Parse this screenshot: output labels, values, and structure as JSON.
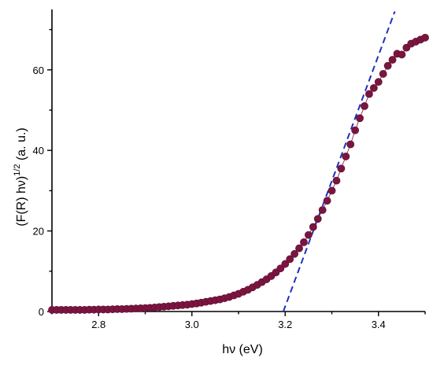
{
  "chart_data": {
    "type": "scatter",
    "xlabel": "hν (eV)",
    "ylabel_main": "(F(R) hν)",
    "ylabel_sup": "1/2",
    "ylabel_unit": " (a. u.)",
    "xlim": [
      2.7,
      3.5
    ],
    "ylim": [
      0,
      75
    ],
    "x_ticks": [
      2.8,
      3.0,
      3.2,
      3.4
    ],
    "x_tick_labels": [
      "2.8",
      "3.0",
      "3.2",
      "3.4"
    ],
    "y_ticks": [
      0,
      20,
      40,
      60
    ],
    "y_tick_labels": [
      "0",
      "20",
      "40",
      "60"
    ],
    "grid": false,
    "series": [
      {
        "marker_color": "#7a1540",
        "points": [
          [
            2.7,
            0.4
          ],
          [
            2.71,
            0.4
          ],
          [
            2.72,
            0.4
          ],
          [
            2.73,
            0.4
          ],
          [
            2.74,
            0.4
          ],
          [
            2.75,
            0.4
          ],
          [
            2.76,
            0.4
          ],
          [
            2.77,
            0.4
          ],
          [
            2.78,
            0.45
          ],
          [
            2.79,
            0.45
          ],
          [
            2.8,
            0.5
          ],
          [
            2.81,
            0.5
          ],
          [
            2.82,
            0.5
          ],
          [
            2.83,
            0.55
          ],
          [
            2.84,
            0.6
          ],
          [
            2.85,
            0.6
          ],
          [
            2.86,
            0.65
          ],
          [
            2.87,
            0.7
          ],
          [
            2.88,
            0.75
          ],
          [
            2.89,
            0.8
          ],
          [
            2.9,
            0.85
          ],
          [
            2.91,
            0.9
          ],
          [
            2.92,
            1.0
          ],
          [
            2.93,
            1.1
          ],
          [
            2.94,
            1.2
          ],
          [
            2.95,
            1.3
          ],
          [
            2.96,
            1.4
          ],
          [
            2.97,
            1.5
          ],
          [
            2.98,
            1.6
          ],
          [
            2.99,
            1.7
          ],
          [
            3.0,
            1.85
          ],
          [
            3.01,
            2.0
          ],
          [
            3.02,
            2.2
          ],
          [
            3.03,
            2.4
          ],
          [
            3.04,
            2.6
          ],
          [
            3.05,
            2.8
          ],
          [
            3.06,
            3.0
          ],
          [
            3.07,
            3.3
          ],
          [
            3.08,
            3.6
          ],
          [
            3.09,
            4.0
          ],
          [
            3.1,
            4.4
          ],
          [
            3.11,
            4.9
          ],
          [
            3.12,
            5.4
          ],
          [
            3.13,
            6.0
          ],
          [
            3.14,
            6.6
          ],
          [
            3.15,
            7.3
          ],
          [
            3.16,
            8.0
          ],
          [
            3.17,
            8.8
          ],
          [
            3.18,
            9.7
          ],
          [
            3.19,
            10.7
          ],
          [
            3.2,
            11.8
          ],
          [
            3.21,
            13.0
          ],
          [
            3.22,
            14.3
          ],
          [
            3.23,
            15.7
          ],
          [
            3.24,
            17.2
          ],
          [
            3.25,
            19.0
          ],
          [
            3.26,
            21.0
          ],
          [
            3.27,
            23.0
          ],
          [
            3.28,
            25.2
          ],
          [
            3.29,
            27.5
          ],
          [
            3.3,
            30.0
          ],
          [
            3.31,
            32.5
          ],
          [
            3.32,
            35.5
          ],
          [
            3.33,
            38.5
          ],
          [
            3.34,
            41.5
          ],
          [
            3.35,
            45.0
          ],
          [
            3.36,
            48.0
          ],
          [
            3.37,
            51.0
          ],
          [
            3.38,
            54.0
          ],
          [
            3.39,
            55.5
          ],
          [
            3.4,
            57.0
          ],
          [
            3.41,
            59.0
          ],
          [
            3.42,
            61.0
          ],
          [
            3.43,
            62.5
          ],
          [
            3.44,
            64.0
          ],
          [
            3.45,
            63.8
          ],
          [
            3.46,
            65.5
          ],
          [
            3.47,
            66.5
          ],
          [
            3.48,
            67.0
          ],
          [
            3.49,
            67.5
          ],
          [
            3.5,
            68.0
          ]
        ]
      }
    ],
    "fit_line": {
      "color": "#1f2fbf",
      "x": [
        3.196,
        3.435
      ],
      "y": [
        0,
        74.5
      ]
    }
  }
}
